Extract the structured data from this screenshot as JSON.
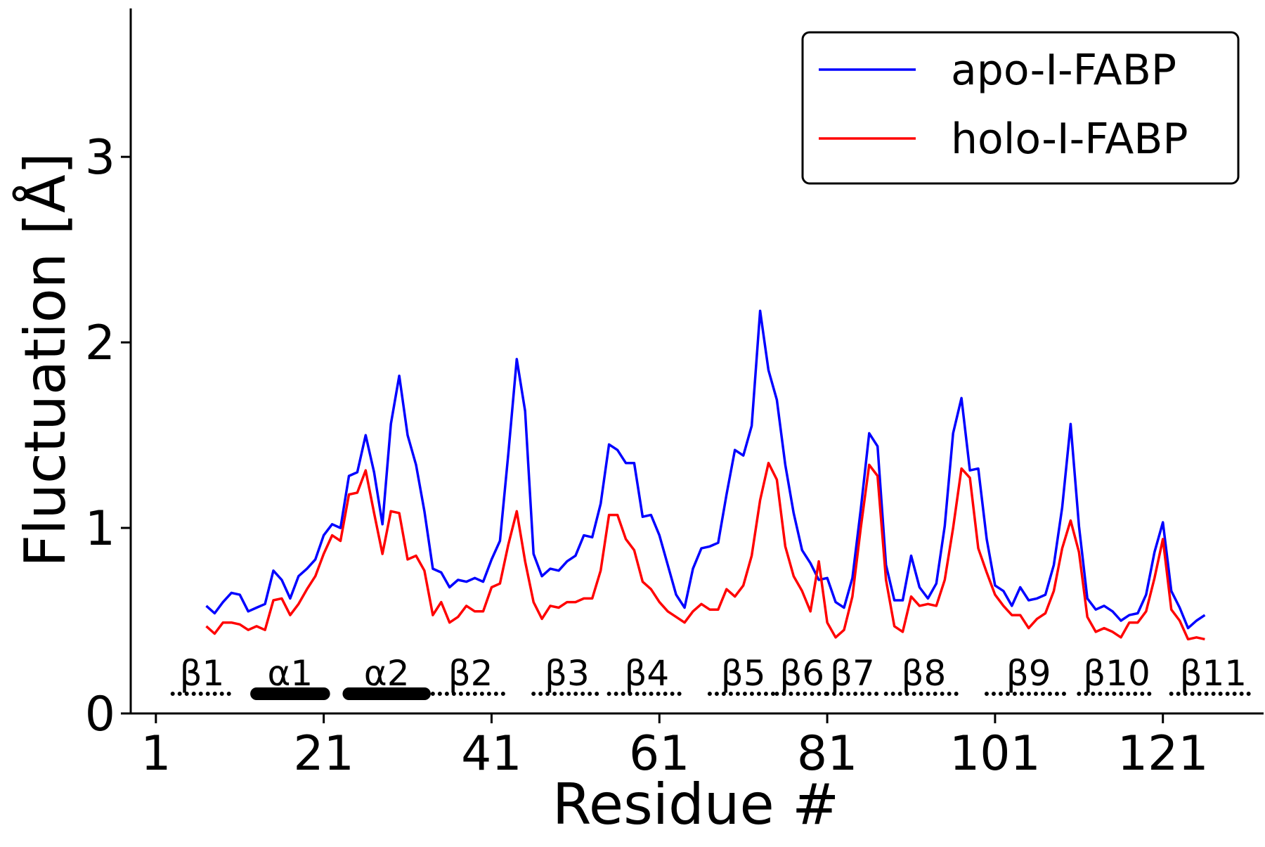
{
  "chart_data": {
    "type": "line",
    "title": "",
    "xlabel": "Residue #",
    "ylabel": "Fluctuation [Å]",
    "xlim": [
      -2,
      133
    ],
    "ylim": [
      0,
      3.8
    ],
    "xticks": [
      1,
      21,
      41,
      61,
      81,
      101,
      121
    ],
    "yticks": [
      0,
      1,
      2,
      3
    ],
    "grid": false,
    "legend_position": "top-right",
    "series": [
      {
        "name": "apo-I-FABP",
        "color": "#0000ff",
        "x": [
          7,
          8,
          9,
          10,
          11,
          12,
          13,
          14,
          15,
          16,
          17,
          18,
          19,
          20,
          21,
          22,
          23,
          24,
          25,
          26,
          27,
          28,
          29,
          30,
          31,
          32,
          33,
          34,
          35,
          36,
          37,
          38,
          39,
          40,
          41,
          42,
          43,
          44,
          45,
          46,
          47,
          48,
          49,
          50,
          51,
          52,
          53,
          54,
          55,
          56,
          57,
          58,
          59,
          60,
          61,
          62,
          63,
          64,
          65,
          66,
          67,
          68,
          69,
          70,
          71,
          72,
          73,
          74,
          75,
          76,
          77,
          78,
          79,
          80,
          81,
          82,
          83,
          84,
          85,
          86,
          87,
          88,
          89,
          90,
          91,
          92,
          93,
          94,
          95,
          96,
          97,
          98,
          99,
          100,
          101,
          102,
          103,
          104,
          105,
          106,
          107,
          108,
          109,
          110,
          111,
          112,
          113,
          114,
          115,
          116,
          117,
          118,
          119,
          120,
          121,
          122,
          123,
          124,
          125,
          126
        ],
        "y": [
          0.58,
          0.54,
          0.6,
          0.65,
          0.64,
          0.55,
          0.57,
          0.59,
          0.77,
          0.72,
          0.62,
          0.74,
          0.78,
          0.83,
          0.96,
          1.02,
          1.0,
          1.28,
          1.3,
          1.5,
          1.3,
          1.02,
          1.56,
          1.82,
          1.5,
          1.34,
          1.09,
          0.78,
          0.76,
          0.68,
          0.72,
          0.71,
          0.73,
          0.71,
          0.83,
          0.93,
          1.4,
          1.91,
          1.63,
          0.86,
          0.74,
          0.78,
          0.77,
          0.82,
          0.85,
          0.96,
          0.95,
          1.13,
          1.45,
          1.42,
          1.35,
          1.35,
          1.06,
          1.07,
          0.96,
          0.8,
          0.64,
          0.57,
          0.78,
          0.89,
          0.9,
          0.92,
          1.18,
          1.42,
          1.39,
          1.55,
          2.17,
          1.85,
          1.69,
          1.34,
          1.08,
          0.88,
          0.81,
          0.72,
          0.73,
          0.6,
          0.57,
          0.73,
          1.1,
          1.51,
          1.44,
          0.8,
          0.61,
          0.61,
          0.85,
          0.68,
          0.62,
          0.7,
          1.01,
          1.51,
          1.7,
          1.31,
          1.32,
          0.94,
          0.69,
          0.66,
          0.58,
          0.68,
          0.61,
          0.62,
          0.64,
          0.8,
          1.11,
          1.56,
          1.01,
          0.62,
          0.56,
          0.58,
          0.55,
          0.5,
          0.53,
          0.54,
          0.64,
          0.87,
          1.03,
          0.66,
          0.57,
          0.46,
          0.5,
          0.53
        ]
      },
      {
        "name": "holo-I-FABP",
        "color": "#ff0000",
        "x": [
          7,
          8,
          9,
          10,
          11,
          12,
          13,
          14,
          15,
          16,
          17,
          18,
          19,
          20,
          21,
          22,
          23,
          24,
          25,
          26,
          27,
          28,
          29,
          30,
          31,
          32,
          33,
          34,
          35,
          36,
          37,
          38,
          39,
          40,
          41,
          42,
          43,
          44,
          45,
          46,
          47,
          48,
          49,
          50,
          51,
          52,
          53,
          54,
          55,
          56,
          57,
          58,
          59,
          60,
          61,
          62,
          63,
          64,
          65,
          66,
          67,
          68,
          69,
          70,
          71,
          72,
          73,
          74,
          75,
          76,
          77,
          78,
          79,
          80,
          81,
          82,
          83,
          84,
          85,
          86,
          87,
          88,
          89,
          90,
          91,
          92,
          93,
          94,
          95,
          96,
          97,
          98,
          99,
          100,
          101,
          102,
          103,
          104,
          105,
          106,
          107,
          108,
          109,
          110,
          111,
          112,
          113,
          114,
          115,
          116,
          117,
          118,
          119,
          120,
          121,
          122,
          123,
          124,
          125,
          126
        ],
        "y": [
          0.47,
          0.43,
          0.49,
          0.49,
          0.48,
          0.45,
          0.47,
          0.45,
          0.61,
          0.62,
          0.53,
          0.59,
          0.67,
          0.74,
          0.86,
          0.96,
          0.93,
          1.18,
          1.19,
          1.31,
          1.08,
          0.86,
          1.09,
          1.08,
          0.83,
          0.85,
          0.77,
          0.53,
          0.6,
          0.49,
          0.52,
          0.58,
          0.55,
          0.55,
          0.68,
          0.7,
          0.91,
          1.09,
          0.82,
          0.6,
          0.51,
          0.58,
          0.57,
          0.6,
          0.6,
          0.62,
          0.62,
          0.77,
          1.07,
          1.07,
          0.94,
          0.88,
          0.71,
          0.67,
          0.6,
          0.55,
          0.52,
          0.49,
          0.55,
          0.59,
          0.56,
          0.56,
          0.67,
          0.63,
          0.69,
          0.85,
          1.15,
          1.35,
          1.26,
          0.9,
          0.74,
          0.66,
          0.55,
          0.82,
          0.49,
          0.41,
          0.45,
          0.63,
          1.0,
          1.34,
          1.28,
          0.72,
          0.47,
          0.44,
          0.63,
          0.58,
          0.59,
          0.58,
          0.72,
          1.0,
          1.32,
          1.27,
          0.89,
          0.76,
          0.64,
          0.58,
          0.53,
          0.53,
          0.46,
          0.51,
          0.54,
          0.66,
          0.89,
          1.04,
          0.87,
          0.52,
          0.44,
          0.46,
          0.44,
          0.41,
          0.49,
          0.49,
          0.55,
          0.73,
          0.94,
          0.56,
          0.5,
          0.4,
          0.41,
          0.4
        ]
      }
    ],
    "secondary_structure": [
      {
        "label": "β1",
        "kind": "strand",
        "start": 3,
        "end": 10
      },
      {
        "label": "α1",
        "kind": "helix",
        "start": 13,
        "end": 21
      },
      {
        "label": "α2",
        "kind": "helix",
        "start": 24,
        "end": 33
      },
      {
        "label": "β2",
        "kind": "strand",
        "start": 34,
        "end": 43
      },
      {
        "label": "β3",
        "kind": "strand",
        "start": 46,
        "end": 54
      },
      {
        "label": "β4",
        "kind": "strand",
        "start": 55,
        "end": 64
      },
      {
        "label": "β5",
        "kind": "strand",
        "start": 67,
        "end": 75
      },
      {
        "label": "β6",
        "kind": "strand",
        "start": 75,
        "end": 81
      },
      {
        "label": "β7",
        "kind": "strand",
        "start": 81,
        "end": 87
      },
      {
        "label": "β8",
        "kind": "strand",
        "start": 88,
        "end": 97
      },
      {
        "label": "β9",
        "kind": "strand",
        "start": 100,
        "end": 110
      },
      {
        "label": "β10",
        "kind": "strand",
        "start": 111,
        "end": 120
      },
      {
        "label": "β11",
        "kind": "strand",
        "start": 122,
        "end": 132
      }
    ]
  }
}
